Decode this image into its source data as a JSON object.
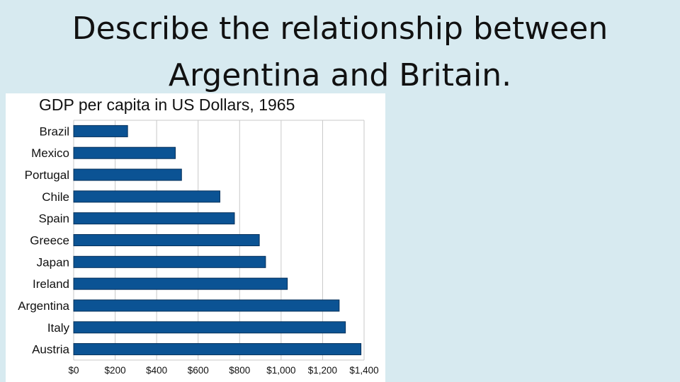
{
  "slide": {
    "title_line1": "Describe the relationship between",
    "title_line2": "Argentina and Britain."
  },
  "colors": {
    "background": "#d7eaf0",
    "bar_fill": "#0b5394",
    "bar_stroke": "#06305a",
    "grid": "#c8c8c8"
  },
  "chart_data": {
    "type": "bar",
    "orientation": "horizontal",
    "title": "GDP per capita in US Dollars, 1965",
    "xlabel": "",
    "ylabel": "",
    "categories": [
      "Brazil",
      "Mexico",
      "Portugal",
      "Chile",
      "Spain",
      "Greece",
      "Japan",
      "Ireland",
      "Argentina",
      "Italy",
      "Austria"
    ],
    "values": [
      260,
      490,
      520,
      705,
      775,
      895,
      925,
      1030,
      1280,
      1310,
      1385
    ],
    "xlim": [
      0,
      1400
    ],
    "xticks": [
      0,
      200,
      400,
      600,
      800,
      1000,
      1200,
      1400
    ],
    "xtick_labels": [
      "$0",
      "$200",
      "$400",
      "$600",
      "$800",
      "$1,000",
      "$1,200",
      "$1,400"
    ],
    "grid": true,
    "legend": "none"
  }
}
